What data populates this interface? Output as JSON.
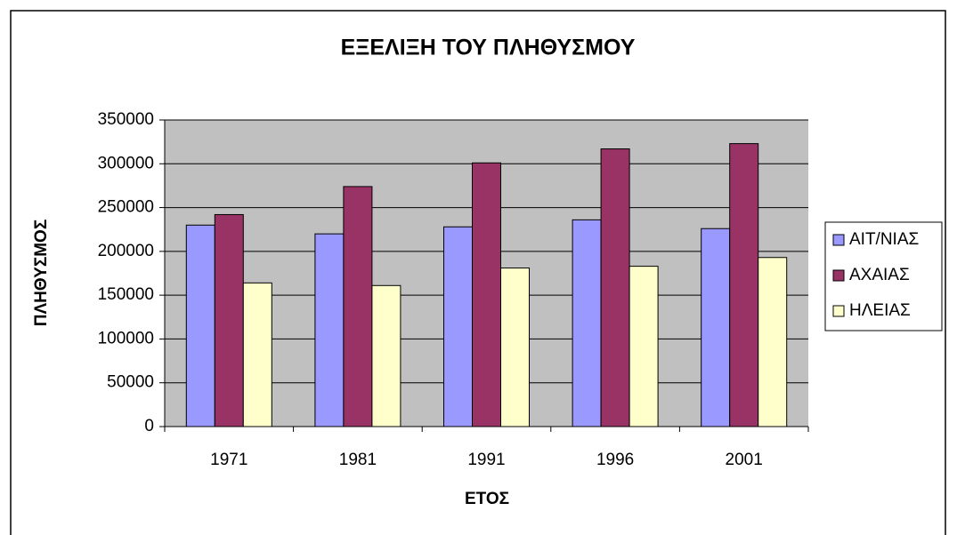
{
  "chart_data": {
    "type": "bar",
    "title": "ΕΞΕΛΙΞΗ ΤΟΥ ΠΛΗΘΥΣΜΟΥ",
    "x_label": "ΕΤΟΣ",
    "y_label": "ΠΛΗΘΥΣΜΟΣ",
    "categories": [
      "1971",
      "1981",
      "1991",
      "1996",
      "2001"
    ],
    "series": [
      {
        "name": "ΑΙΤ/ΝΙΑΣ",
        "color": "#9999ff",
        "values": [
          230000,
          220000,
          228000,
          236000,
          226000
        ]
      },
      {
        "name": "ΑΧΑΙΑΣ",
        "color": "#993366",
        "values": [
          242000,
          274000,
          301000,
          317000,
          323000
        ]
      },
      {
        "name": "ΗΛΕΙΑΣ",
        "color": "#ffffcc",
        "values": [
          164000,
          161000,
          181000,
          183000,
          193000
        ]
      }
    ],
    "ylim": [
      0,
      350000
    ],
    "yticks": [
      0,
      50000,
      100000,
      150000,
      200000,
      250000,
      300000,
      350000
    ],
    "grid": true,
    "legend": "right"
  }
}
